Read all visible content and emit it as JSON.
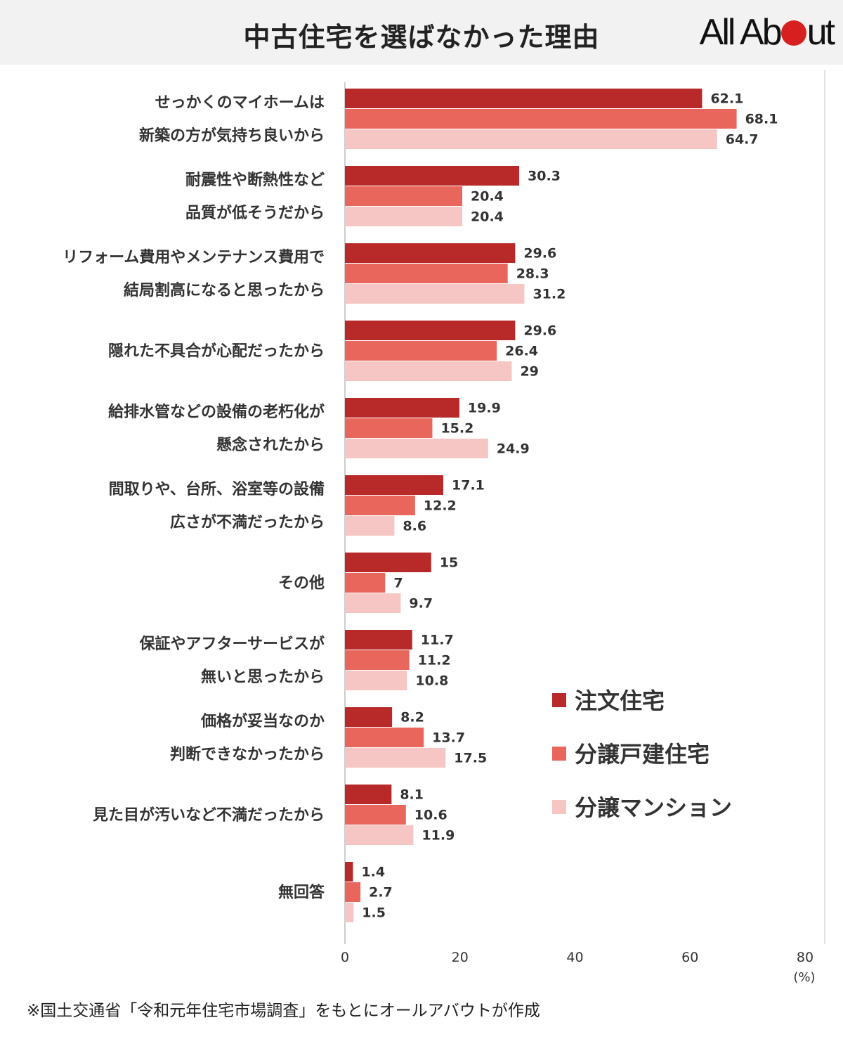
{
  "header": {
    "title": "中古住宅を選ばなかった理由",
    "logo_left": "All Ab",
    "logo_right": "ut"
  },
  "chart_data": {
    "type": "bar",
    "orientation": "horizontal",
    "title": "中古住宅を選ばなかった理由",
    "categories": [
      [
        "せっかくのマイホームは",
        "新築の方が気持ち良いから"
      ],
      [
        "耐震性や断熱性など",
        "品質が低そうだから"
      ],
      [
        "リフォーム費用やメンテナンス費用で",
        "結局割高になると思ったから"
      ],
      [
        "隠れた不具合が心配だったから"
      ],
      [
        "給排水管などの設備の老朽化が",
        "懸念されたから"
      ],
      [
        "間取りや、台所、浴室等の設備",
        "広さが不満だったから"
      ],
      [
        "その他"
      ],
      [
        "保証やアフターサービスが",
        "無いと思ったから"
      ],
      [
        "価格が妥当なのか",
        "判断できなかったから"
      ],
      [
        "見た目が汚いなど不満だったから"
      ],
      [
        "無回答"
      ]
    ],
    "series": [
      {
        "name": "注文住宅",
        "color": "#b82a2a",
        "values": [
          62.1,
          30.3,
          29.6,
          29.6,
          19.9,
          17.1,
          15,
          11.7,
          8.2,
          8.1,
          1.4
        ]
      },
      {
        "name": "分譲戸建住宅",
        "color": "#e8665c",
        "values": [
          68.1,
          20.4,
          28.3,
          26.4,
          15.2,
          12.2,
          7,
          11.2,
          13.7,
          10.6,
          2.7
        ]
      },
      {
        "name": "分譲マンション",
        "color": "#f5c6c4",
        "values": [
          64.7,
          20.4,
          31.2,
          29,
          24.9,
          8.6,
          9.7,
          10.8,
          17.5,
          11.9,
          1.5
        ]
      }
    ],
    "xlim": [
      0,
      80
    ],
    "xticks": [
      "0",
      "20",
      "40",
      "60",
      "80"
    ],
    "xunit": "(%)",
    "legend_position": "right"
  },
  "footnote": "※国土交通省「令和元年住宅市場調査」をもとにオールアバウトが作成"
}
